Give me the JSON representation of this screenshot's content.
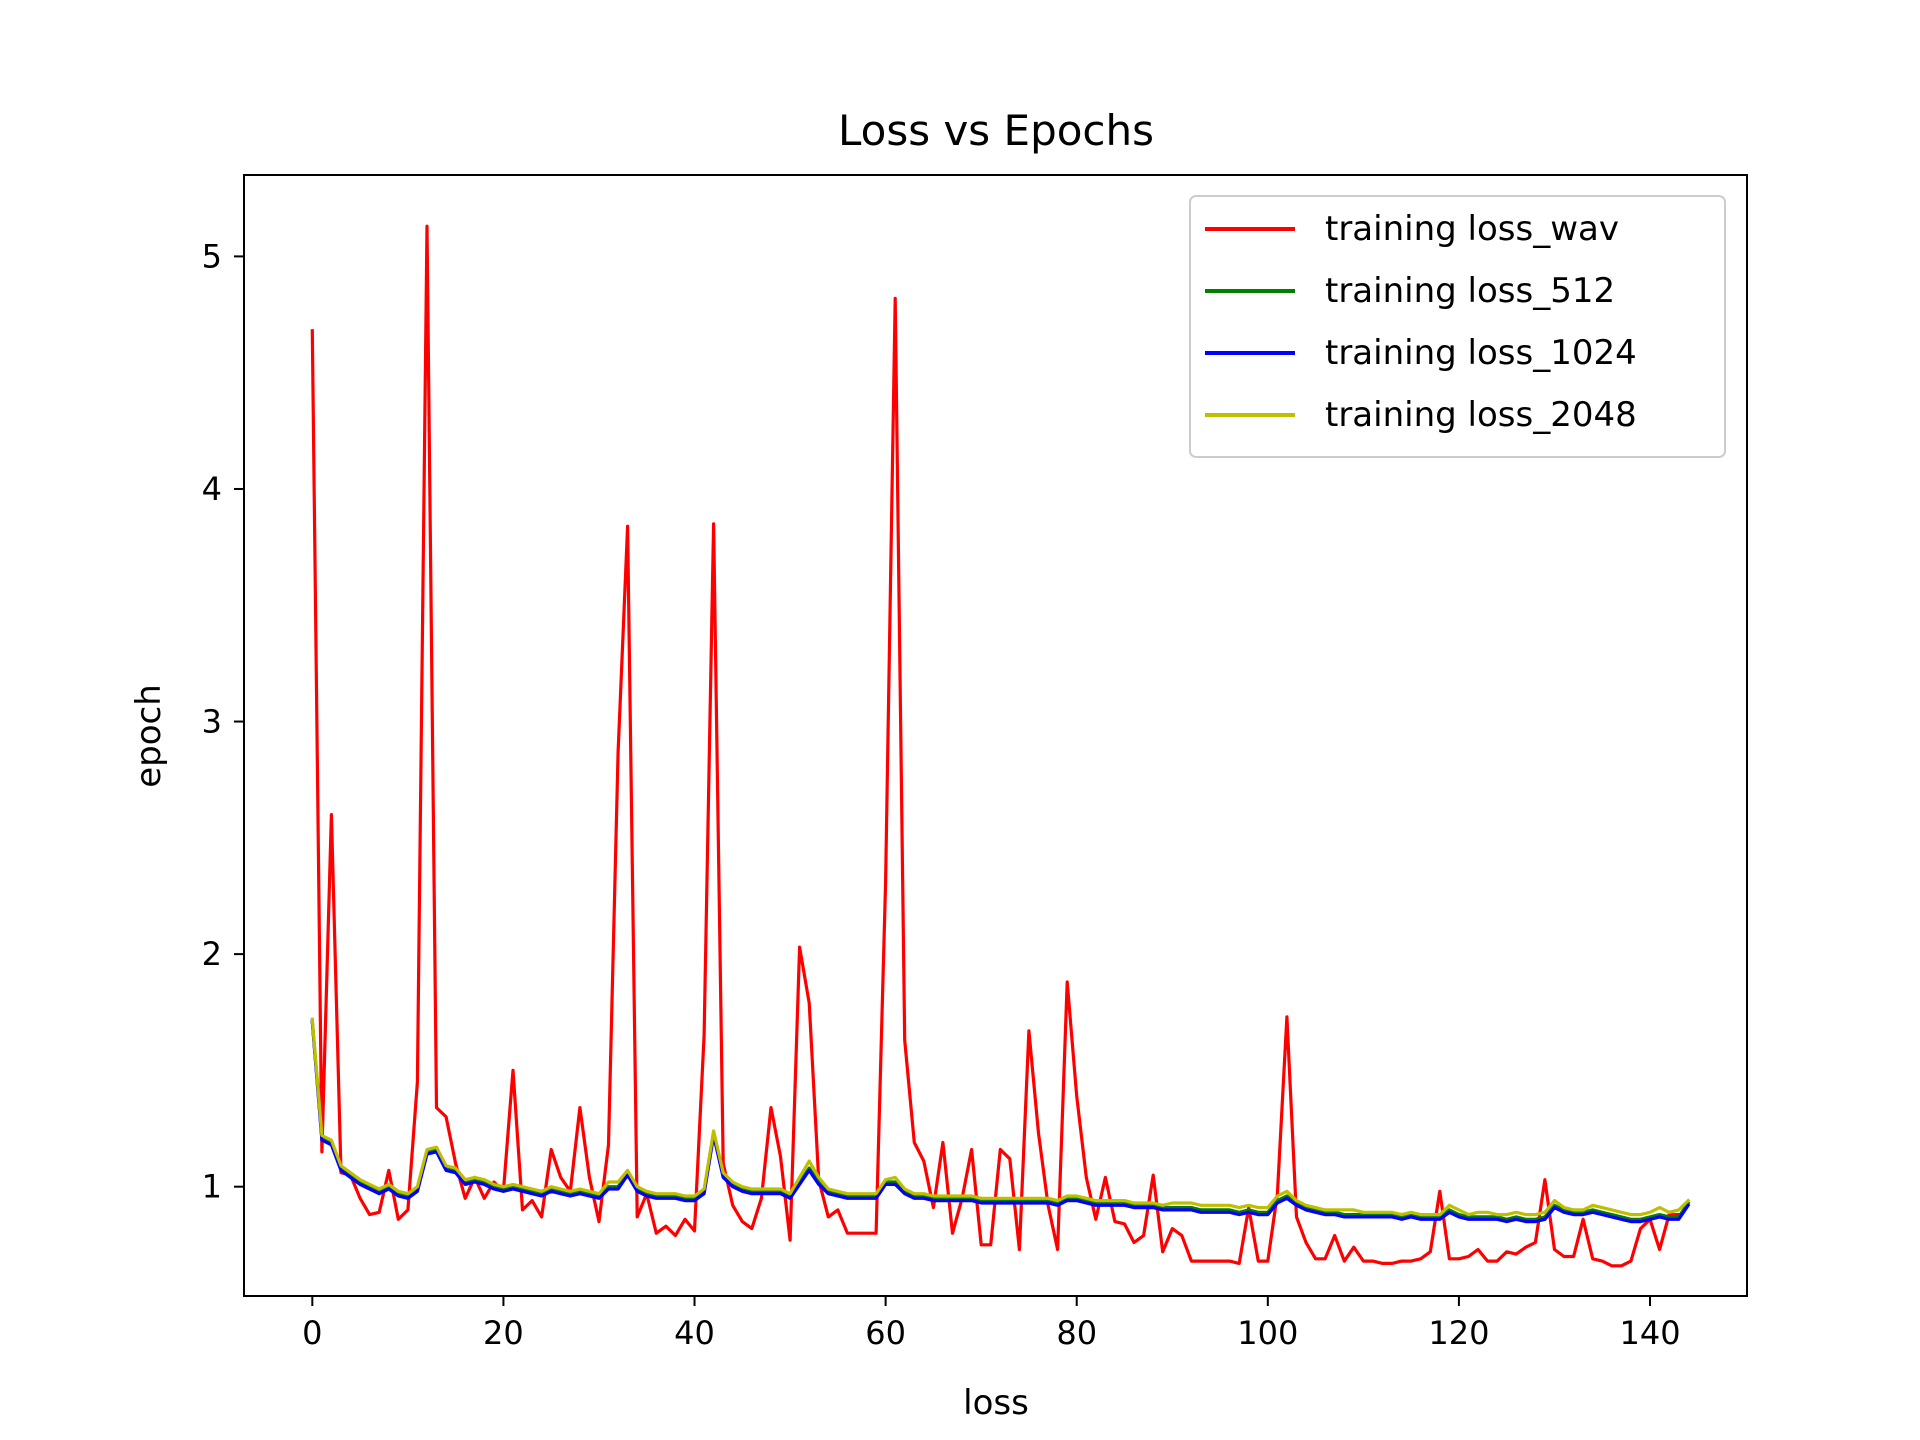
{
  "chart_data": {
    "type": "line",
    "title": "Loss vs Epochs",
    "xlabel": "loss",
    "ylabel": "epoch",
    "xlim": [
      -7.15,
      150.15
    ],
    "ylim": [
      0.53,
      5.35
    ],
    "xticks": [
      0,
      20,
      40,
      60,
      80,
      100,
      120,
      140
    ],
    "yticks": [
      1,
      2,
      3,
      4,
      5
    ],
    "grid": false,
    "legend_position": "top-right",
    "x_start": 0,
    "series": [
      {
        "name": "training loss_wav",
        "color": "#ff0000",
        "values": [
          4.68,
          1.15,
          2.6,
          1.06,
          1.05,
          0.95,
          0.88,
          0.89,
          1.07,
          0.86,
          0.9,
          1.45,
          5.13,
          1.34,
          1.3,
          1.1,
          0.95,
          1.04,
          0.95,
          1.02,
          0.98,
          1.5,
          0.9,
          0.94,
          0.87,
          1.16,
          1.04,
          0.98,
          1.34,
          1.04,
          0.85,
          1.18,
          2.87,
          3.84,
          0.87,
          0.97,
          0.8,
          0.83,
          0.79,
          0.86,
          0.81,
          1.65,
          3.85,
          1.1,
          0.92,
          0.85,
          0.82,
          0.95,
          1.34,
          1.13,
          0.77,
          2.03,
          1.79,
          1.03,
          0.87,
          0.9,
          0.8,
          0.8,
          0.8,
          0.8,
          2.31,
          4.82,
          1.63,
          1.19,
          1.11,
          0.91,
          1.19,
          0.8,
          0.95,
          1.16,
          0.75,
          0.75,
          1.16,
          1.12,
          0.73,
          1.67,
          1.23,
          0.92,
          0.73,
          1.88,
          1.39,
          1.04,
          0.86,
          1.04,
          0.85,
          0.84,
          0.76,
          0.79,
          1.05,
          0.72,
          0.82,
          0.79,
          0.68,
          0.68,
          0.68,
          0.68,
          0.68,
          0.67,
          0.91,
          0.68,
          0.68,
          0.97,
          1.73,
          0.87,
          0.76,
          0.69,
          0.69,
          0.79,
          0.68,
          0.74,
          0.68,
          0.68,
          0.67,
          0.67,
          0.68,
          0.68,
          0.69,
          0.72,
          0.98,
          0.69,
          0.69,
          0.7,
          0.73,
          0.68,
          0.68,
          0.72,
          0.71,
          0.74,
          0.76,
          1.03,
          0.73,
          0.7,
          0.7,
          0.86,
          0.69,
          0.68,
          0.66,
          0.66,
          0.68,
          0.82,
          0.86,
          0.73,
          0.88,
          0.88
        ]
      },
      {
        "name": "training loss_512",
        "color": "#008000",
        "values": [
          1.71,
          1.21,
          1.19,
          1.08,
          1.05,
          1.02,
          1.0,
          0.98,
          1.0,
          0.97,
          0.96,
          0.99,
          1.15,
          1.16,
          1.08,
          1.07,
          1.02,
          1.03,
          1.02,
          1.0,
          0.99,
          1.0,
          0.99,
          0.98,
          0.97,
          0.99,
          0.98,
          0.97,
          0.98,
          0.97,
          0.96,
          1.0,
          1.0,
          1.06,
          0.99,
          0.97,
          0.96,
          0.96,
          0.96,
          0.95,
          0.95,
          0.98,
          1.23,
          1.05,
          1.01,
          0.99,
          0.98,
          0.98,
          0.98,
          0.98,
          0.96,
          1.02,
          1.08,
          1.02,
          0.98,
          0.97,
          0.96,
          0.96,
          0.96,
          0.96,
          1.02,
          1.02,
          0.98,
          0.96,
          0.96,
          0.95,
          0.95,
          0.95,
          0.95,
          0.95,
          0.94,
          0.94,
          0.94,
          0.94,
          0.94,
          0.94,
          0.94,
          0.94,
          0.93,
          0.95,
          0.95,
          0.94,
          0.93,
          0.93,
          0.93,
          0.93,
          0.92,
          0.92,
          0.92,
          0.91,
          0.91,
          0.91,
          0.91,
          0.9,
          0.9,
          0.9,
          0.9,
          0.89,
          0.9,
          0.89,
          0.89,
          0.94,
          0.96,
          0.93,
          0.91,
          0.9,
          0.89,
          0.89,
          0.88,
          0.88,
          0.88,
          0.88,
          0.88,
          0.88,
          0.87,
          0.88,
          0.87,
          0.87,
          0.87,
          0.9,
          0.88,
          0.87,
          0.87,
          0.87,
          0.87,
          0.86,
          0.87,
          0.86,
          0.86,
          0.87,
          0.92,
          0.9,
          0.89,
          0.89,
          0.9,
          0.89,
          0.88,
          0.87,
          0.86,
          0.86,
          0.87,
          0.88,
          0.87,
          0.87,
          0.93
        ]
      },
      {
        "name": "training loss_1024",
        "color": "#0000ff",
        "values": [
          1.71,
          1.2,
          1.18,
          1.07,
          1.04,
          1.01,
          0.99,
          0.97,
          0.99,
          0.96,
          0.95,
          0.98,
          1.14,
          1.15,
          1.07,
          1.06,
          1.01,
          1.02,
          1.01,
          0.99,
          0.98,
          0.99,
          0.98,
          0.97,
          0.96,
          0.98,
          0.97,
          0.96,
          0.97,
          0.96,
          0.95,
          0.99,
          0.99,
          1.05,
          0.98,
          0.96,
          0.95,
          0.95,
          0.95,
          0.94,
          0.94,
          0.97,
          1.22,
          1.04,
          1.0,
          0.98,
          0.97,
          0.97,
          0.97,
          0.97,
          0.95,
          1.01,
          1.07,
          1.01,
          0.97,
          0.96,
          0.95,
          0.95,
          0.95,
          0.95,
          1.01,
          1.01,
          0.97,
          0.95,
          0.95,
          0.94,
          0.94,
          0.94,
          0.94,
          0.94,
          0.93,
          0.93,
          0.93,
          0.93,
          0.93,
          0.93,
          0.93,
          0.93,
          0.92,
          0.94,
          0.94,
          0.93,
          0.92,
          0.92,
          0.92,
          0.92,
          0.91,
          0.91,
          0.91,
          0.9,
          0.9,
          0.9,
          0.9,
          0.89,
          0.89,
          0.89,
          0.89,
          0.88,
          0.89,
          0.88,
          0.88,
          0.93,
          0.95,
          0.92,
          0.9,
          0.89,
          0.88,
          0.88,
          0.87,
          0.87,
          0.87,
          0.87,
          0.87,
          0.87,
          0.86,
          0.87,
          0.86,
          0.86,
          0.86,
          0.89,
          0.87,
          0.86,
          0.86,
          0.86,
          0.86,
          0.85,
          0.86,
          0.85,
          0.85,
          0.86,
          0.91,
          0.89,
          0.88,
          0.88,
          0.89,
          0.88,
          0.87,
          0.86,
          0.85,
          0.85,
          0.86,
          0.87,
          0.86,
          0.86,
          0.92
        ]
      },
      {
        "name": "training loss_2048",
        "color": "#bfbf00",
        "values": [
          1.72,
          1.22,
          1.2,
          1.09,
          1.06,
          1.03,
          1.01,
          0.99,
          1.01,
          0.98,
          0.97,
          1.0,
          1.16,
          1.17,
          1.09,
          1.08,
          1.03,
          1.04,
          1.03,
          1.01,
          1.0,
          1.01,
          1.0,
          0.99,
          0.98,
          1.0,
          0.99,
          0.98,
          0.99,
          0.98,
          0.97,
          1.02,
          1.02,
          1.07,
          1.0,
          0.98,
          0.97,
          0.97,
          0.97,
          0.96,
          0.96,
          0.99,
          1.24,
          1.06,
          1.02,
          1.0,
          0.99,
          0.99,
          0.99,
          0.99,
          0.97,
          1.04,
          1.11,
          1.04,
          0.99,
          0.98,
          0.97,
          0.97,
          0.97,
          0.97,
          1.03,
          1.04,
          0.99,
          0.97,
          0.97,
          0.96,
          0.96,
          0.96,
          0.96,
          0.96,
          0.95,
          0.95,
          0.95,
          0.95,
          0.95,
          0.95,
          0.95,
          0.95,
          0.94,
          0.96,
          0.96,
          0.95,
          0.94,
          0.94,
          0.94,
          0.94,
          0.93,
          0.93,
          0.93,
          0.92,
          0.93,
          0.93,
          0.93,
          0.92,
          0.92,
          0.92,
          0.92,
          0.91,
          0.92,
          0.91,
          0.91,
          0.96,
          0.98,
          0.94,
          0.92,
          0.91,
          0.9,
          0.9,
          0.9,
          0.9,
          0.89,
          0.89,
          0.89,
          0.89,
          0.88,
          0.89,
          0.88,
          0.88,
          0.88,
          0.92,
          0.9,
          0.88,
          0.89,
          0.89,
          0.88,
          0.88,
          0.89,
          0.88,
          0.88,
          0.89,
          0.94,
          0.91,
          0.9,
          0.9,
          0.92,
          0.91,
          0.9,
          0.89,
          0.88,
          0.88,
          0.89,
          0.91,
          0.89,
          0.9,
          0.94
        ]
      }
    ]
  }
}
